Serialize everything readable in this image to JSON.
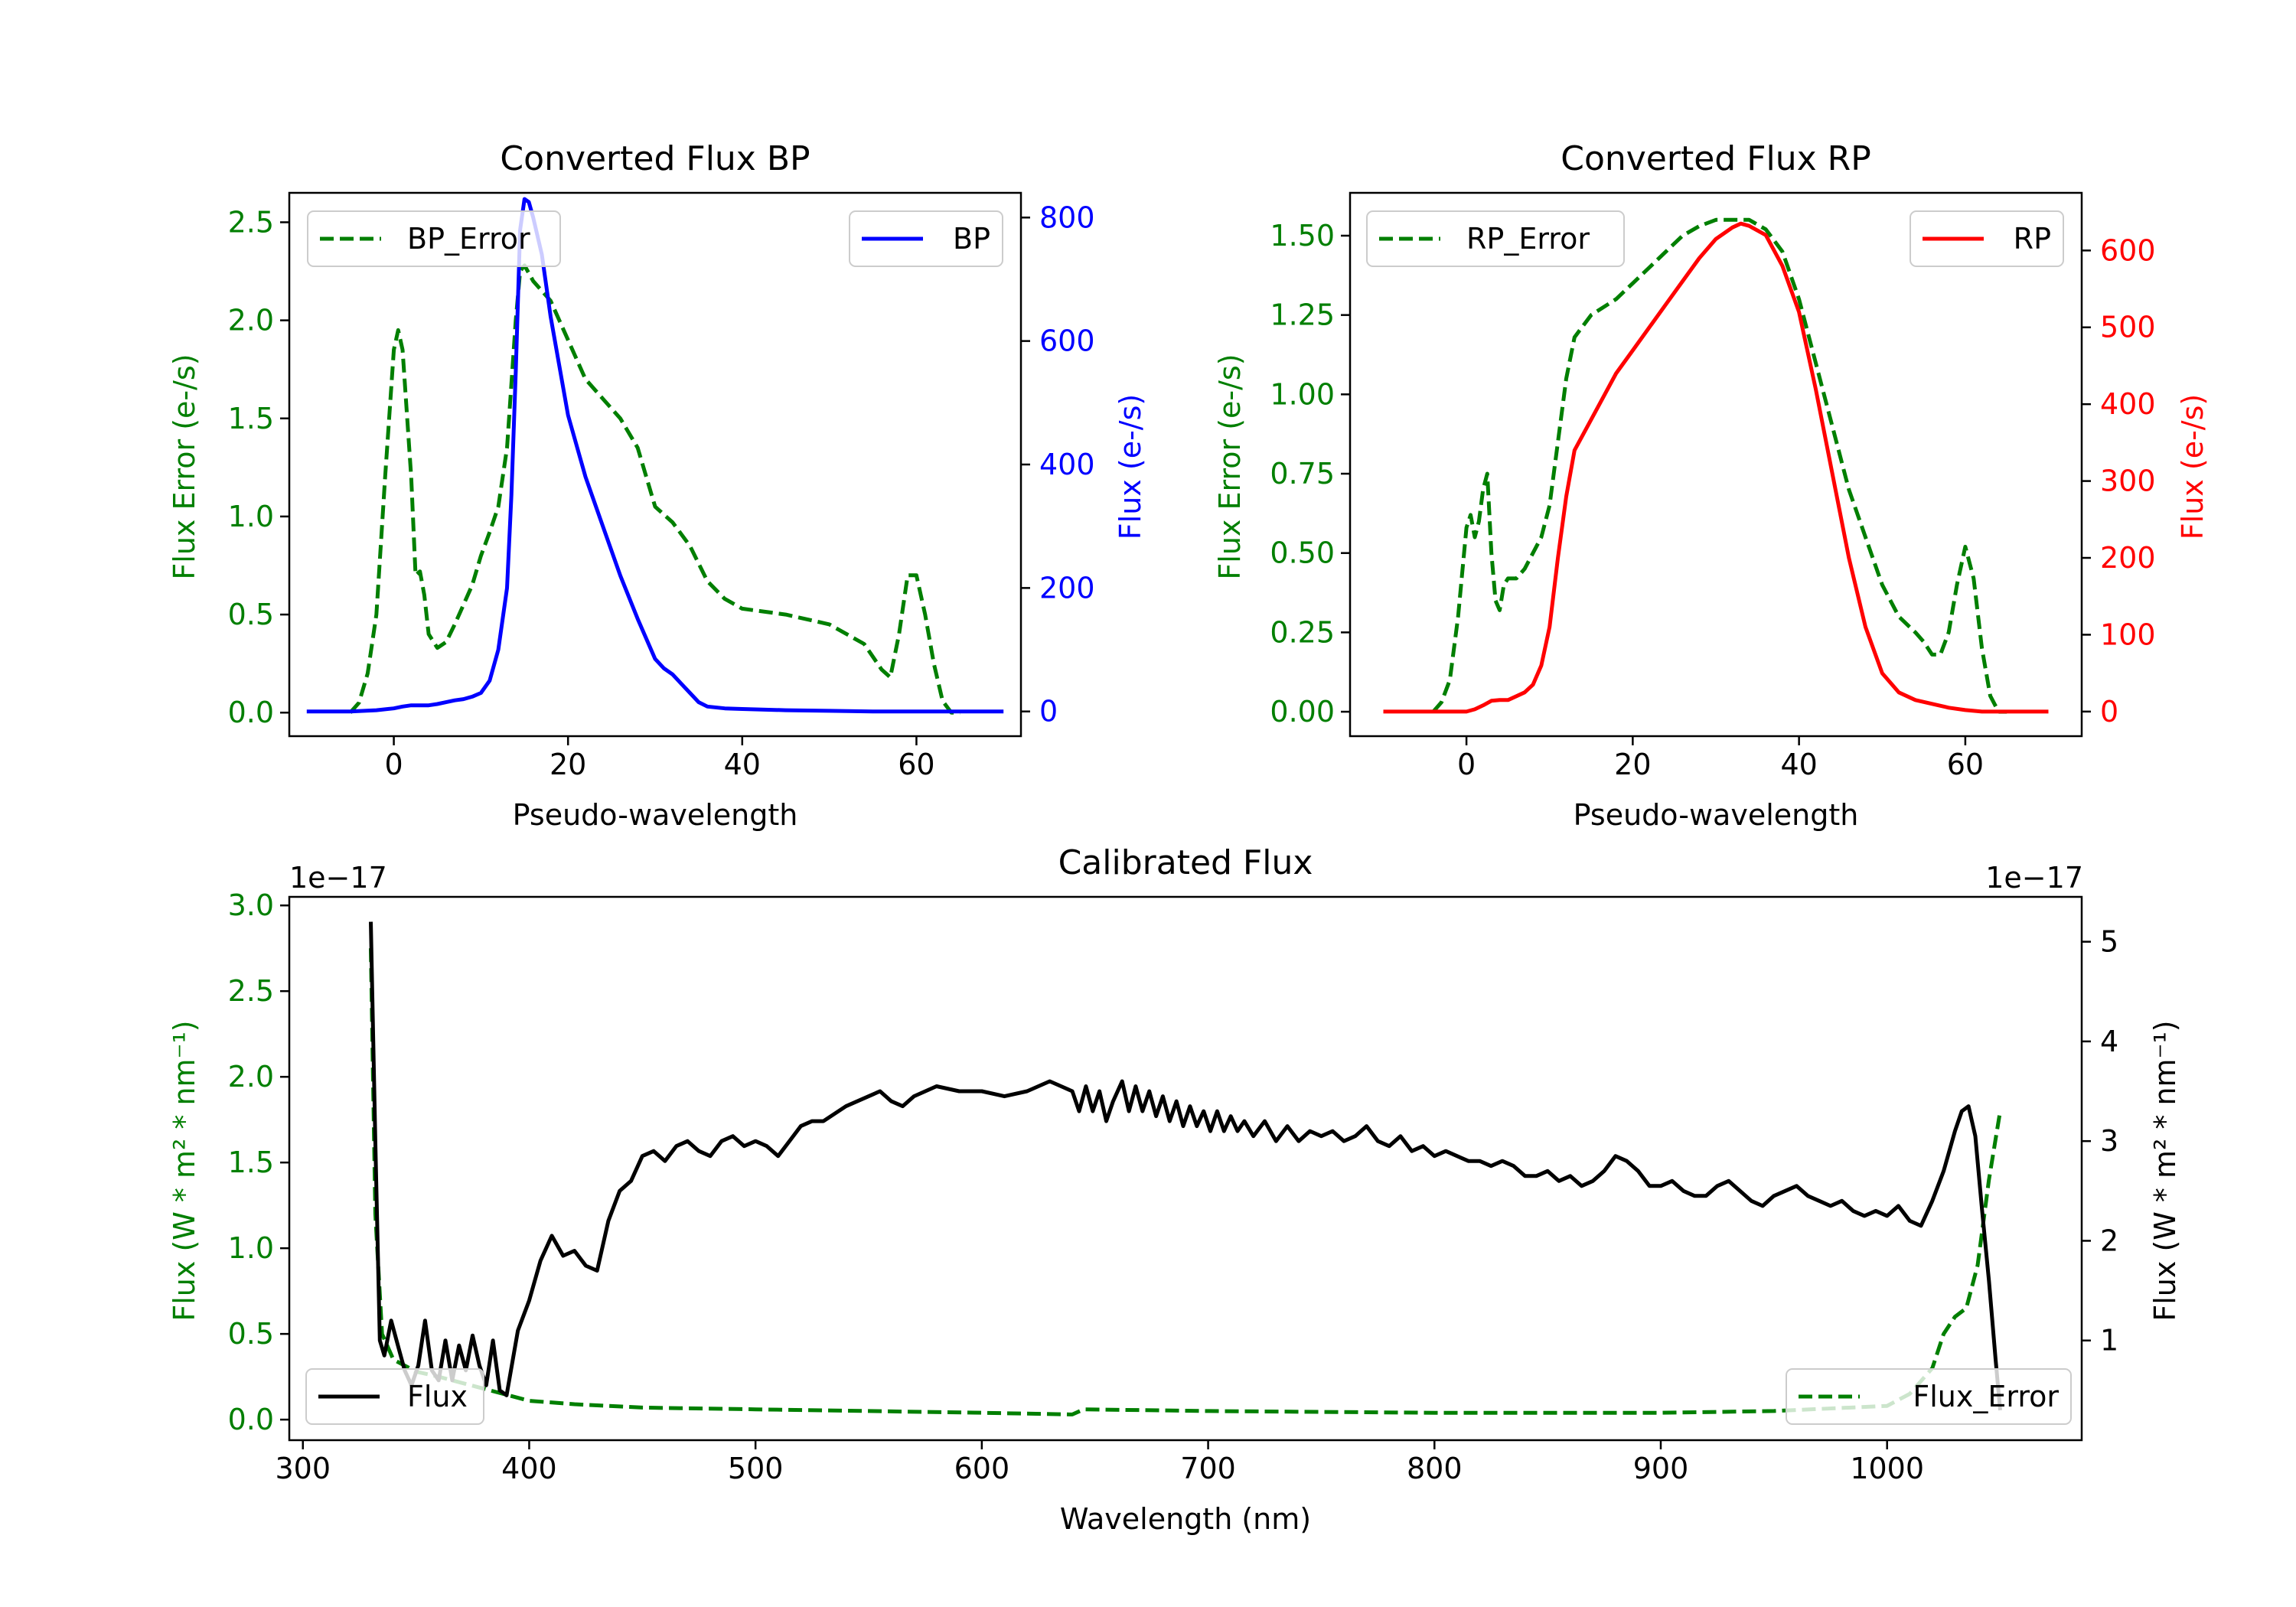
{
  "colors": {
    "error": "#007f00",
    "bp": "#0000ff",
    "rp": "#ff0000",
    "flux": "#000000",
    "axis": "#000000"
  },
  "chart_data": [
    {
      "id": "bp",
      "type": "line",
      "title": "Converted Flux BP",
      "xlabel": "Pseudo-wavelength",
      "ylabel_left": "Flux Error (e-/s)",
      "ylabel_right": "Flux (e-/s)",
      "xlim": [
        -12,
        72
      ],
      "ylim_left": [
        -0.12,
        2.65
      ],
      "ylim_right": [
        -40,
        840
      ],
      "xticks": [
        0,
        20,
        40,
        60
      ],
      "yticks_left": [
        0.0,
        0.5,
        1.0,
        1.5,
        2.0,
        2.5
      ],
      "yticks_left_labels": [
        "0.0",
        "0.5",
        "1.0",
        "1.5",
        "2.0",
        "2.5"
      ],
      "yticks_right": [
        0,
        200,
        400,
        600,
        800
      ],
      "yticks_right_labels": [
        "0",
        "200",
        "400",
        "600",
        "800"
      ],
      "legend_left": {
        "label": "BP_Error",
        "location": "upper left"
      },
      "legend_right": {
        "label": "BP",
        "location": "upper right"
      },
      "series": [
        {
          "name": "BP_Error",
          "axis": "left",
          "style": "dashed",
          "color_key": "error",
          "x": [
            -5,
            -4,
            -3,
            -2,
            -1,
            0,
            0.5,
            1,
            2,
            2.5,
            3,
            3.5,
            4,
            5,
            6,
            7,
            8,
            9,
            10,
            11,
            12,
            13,
            14,
            14.5,
            15,
            16,
            18,
            20,
            22,
            24,
            26,
            28,
            30,
            32,
            34,
            36,
            38,
            40,
            45,
            50,
            54,
            56,
            57,
            58,
            59,
            60,
            61,
            62,
            63,
            64,
            65
          ],
          "values": [
            0.0,
            0.05,
            0.2,
            0.5,
            1.2,
            1.85,
            1.95,
            1.85,
            1.2,
            0.7,
            0.72,
            0.6,
            0.4,
            0.33,
            0.36,
            0.45,
            0.55,
            0.65,
            0.8,
            0.92,
            1.05,
            1.35,
            2.0,
            2.25,
            2.28,
            2.2,
            2.1,
            1.9,
            1.7,
            1.6,
            1.5,
            1.35,
            1.05,
            0.97,
            0.85,
            0.67,
            0.58,
            0.53,
            0.5,
            0.45,
            0.35,
            0.22,
            0.18,
            0.4,
            0.7,
            0.7,
            0.5,
            0.25,
            0.06,
            0.0,
            0.0
          ]
        },
        {
          "name": "BP",
          "axis": "right",
          "style": "solid",
          "color_key": "bp",
          "x": [
            -10,
            -5,
            -2,
            0,
            1,
            2,
            4,
            5,
            6,
            7,
            8,
            9,
            10,
            11,
            12,
            13,
            13.5,
            14,
            14.5,
            15,
            15.5,
            16,
            17,
            18,
            19,
            20,
            22,
            24,
            26,
            28,
            30,
            31,
            32,
            33,
            34,
            35,
            36,
            38,
            40,
            45,
            50,
            55,
            60,
            65,
            70
          ],
          "values": [
            0,
            0,
            2,
            5,
            8,
            10,
            10,
            12,
            15,
            18,
            20,
            24,
            30,
            50,
            100,
            200,
            350,
            550,
            780,
            830,
            825,
            800,
            740,
            640,
            560,
            480,
            380,
            300,
            220,
            150,
            85,
            70,
            60,
            45,
            30,
            15,
            8,
            5,
            4,
            2,
            1,
            0,
            0,
            0,
            0
          ]
        }
      ]
    },
    {
      "id": "rp",
      "type": "line",
      "title": "Converted Flux RP",
      "xlabel": "Pseudo-wavelength",
      "ylabel_left": "Flux Error (e-/s)",
      "ylabel_right": "Flux (e-/s)",
      "xlim": [
        -14,
        74
      ],
      "ylim_left": [
        -0.077,
        1.635
      ],
      "ylim_right": [
        -32,
        675
      ],
      "xticks": [
        0,
        20,
        40,
        60
      ],
      "yticks_left": [
        0.0,
        0.25,
        0.5,
        0.75,
        1.0,
        1.25,
        1.5
      ],
      "yticks_left_labels": [
        "0.00",
        "0.25",
        "0.50",
        "0.75",
        "1.00",
        "1.25",
        "1.50"
      ],
      "yticks_right": [
        0,
        100,
        200,
        300,
        400,
        500,
        600
      ],
      "yticks_right_labels": [
        "0",
        "100",
        "200",
        "300",
        "400",
        "500",
        "600"
      ],
      "legend_left": {
        "label": "RP_Error",
        "location": "upper left"
      },
      "legend_right": {
        "label": "RP",
        "location": "upper right"
      },
      "series": [
        {
          "name": "RP_Error",
          "axis": "left",
          "style": "dashed",
          "color_key": "error",
          "x": [
            -4,
            -3,
            -2,
            -1,
            0,
            0.5,
            1,
            1.5,
            2,
            2.5,
            3,
            3.5,
            4,
            4.5,
            5,
            6,
            7,
            8,
            9,
            10,
            11,
            12,
            13,
            15,
            18,
            20,
            22,
            24,
            26,
            28,
            30,
            32,
            34,
            36,
            38,
            40,
            42,
            44,
            46,
            48,
            50,
            52,
            54,
            55,
            56,
            57,
            58,
            59,
            60,
            61,
            62,
            63,
            64,
            65
          ],
          "values": [
            0.0,
            0.03,
            0.1,
            0.3,
            0.58,
            0.62,
            0.55,
            0.6,
            0.7,
            0.75,
            0.5,
            0.35,
            0.32,
            0.4,
            0.42,
            0.42,
            0.45,
            0.5,
            0.55,
            0.65,
            0.85,
            1.05,
            1.18,
            1.25,
            1.3,
            1.35,
            1.4,
            1.45,
            1.5,
            1.53,
            1.55,
            1.55,
            1.55,
            1.52,
            1.45,
            1.3,
            1.1,
            0.9,
            0.7,
            0.55,
            0.4,
            0.3,
            0.25,
            0.22,
            0.18,
            0.18,
            0.25,
            0.4,
            0.52,
            0.42,
            0.2,
            0.05,
            0.0,
            0.0
          ]
        },
        {
          "name": "RP",
          "axis": "right",
          "style": "solid",
          "color_key": "rp",
          "x": [
            -10,
            -4,
            0,
            1,
            2,
            3,
            4,
            5,
            6,
            7,
            8,
            9,
            10,
            11,
            12,
            13,
            14,
            16,
            18,
            20,
            22,
            24,
            26,
            28,
            30,
            32,
            33,
            34,
            36,
            38,
            40,
            42,
            44,
            46,
            48,
            50,
            52,
            54,
            56,
            58,
            60,
            62,
            64,
            66,
            68,
            70
          ],
          "values": [
            0,
            0,
            0,
            3,
            8,
            14,
            15,
            15,
            20,
            25,
            35,
            60,
            110,
            200,
            280,
            340,
            360,
            400,
            440,
            470,
            500,
            530,
            560,
            590,
            615,
            630,
            635,
            632,
            620,
            580,
            520,
            420,
            310,
            200,
            110,
            50,
            25,
            15,
            10,
            5,
            2,
            0,
            0,
            0,
            0,
            0
          ]
        }
      ]
    },
    {
      "id": "calibrated",
      "type": "line",
      "title": "Calibrated Flux",
      "xlabel": "Wavelength (nm)",
      "ylabel_left": "Flux (W * m² * nm⁻¹)",
      "ylabel_right": "Flux (W * m² * nm⁻¹)",
      "left_multiplier": "1e−17",
      "right_multiplier": "1e−17",
      "xlim": [
        294,
        1086
      ],
      "ylim_left": [
        -0.12,
        3.05
      ],
      "ylim_right": [
        0.0,
        5.45
      ],
      "xticks": [
        300,
        400,
        500,
        600,
        700,
        800,
        900,
        1000
      ],
      "yticks_left": [
        0.0,
        0.5,
        1.0,
        1.5,
        2.0,
        2.5,
        3.0
      ],
      "yticks_left_labels": [
        "0.0",
        "0.5",
        "1.0",
        "1.5",
        "2.0",
        "2.5",
        "3.0"
      ],
      "yticks_right": [
        1,
        2,
        3,
        4,
        5
      ],
      "yticks_right_labels": [
        "1",
        "2",
        "3",
        "4",
        "5"
      ],
      "legend_left": {
        "label": "Flux",
        "location": "lower left"
      },
      "legend_right": {
        "label": "Flux_Error",
        "location": "lower right"
      },
      "series": [
        {
          "name": "Flux_Error",
          "axis": "left",
          "style": "dashed",
          "color_key": "error",
          "x": [
            330,
            332,
            335,
            340,
            350,
            360,
            380,
            400,
            420,
            450,
            500,
            550,
            600,
            640,
            645,
            700,
            800,
            900,
            950,
            1000,
            1010,
            1020,
            1025,
            1030,
            1035,
            1040,
            1045,
            1050
          ],
          "values": [
            2.75,
            1.2,
            0.5,
            0.35,
            0.28,
            0.25,
            0.18,
            0.11,
            0.09,
            0.07,
            0.06,
            0.05,
            0.04,
            0.03,
            0.06,
            0.05,
            0.04,
            0.04,
            0.05,
            0.08,
            0.15,
            0.3,
            0.5,
            0.6,
            0.65,
            0.9,
            1.4,
            1.8
          ]
        },
        {
          "name": "Flux",
          "axis": "right",
          "style": "solid",
          "color_key": "flux",
          "x": [
            330,
            332,
            334,
            336,
            339,
            342,
            345,
            348,
            351,
            354,
            357,
            360,
            363,
            366,
            369,
            372,
            375,
            378,
            381,
            384,
            387,
            390,
            395,
            400,
            405,
            410,
            415,
            420,
            425,
            430,
            435,
            440,
            445,
            450,
            455,
            460,
            465,
            470,
            475,
            480,
            485,
            490,
            495,
            500,
            505,
            510,
            515,
            520,
            525,
            530,
            540,
            550,
            555,
            560,
            565,
            570,
            580,
            590,
            600,
            610,
            620,
            630,
            635,
            640,
            643,
            646,
            649,
            652,
            655,
            658,
            662,
            665,
            668,
            671,
            674,
            677,
            680,
            683,
            686,
            689,
            692,
            695,
            698,
            701,
            704,
            707,
            710,
            713,
            716,
            720,
            725,
            730,
            735,
            740,
            745,
            750,
            755,
            760,
            765,
            770,
            775,
            780,
            785,
            790,
            795,
            800,
            805,
            810,
            815,
            820,
            825,
            830,
            835,
            840,
            845,
            850,
            855,
            860,
            865,
            870,
            875,
            880,
            885,
            890,
            895,
            900,
            905,
            910,
            915,
            920,
            925,
            930,
            935,
            940,
            945,
            950,
            955,
            960,
            965,
            970,
            975,
            980,
            985,
            990,
            995,
            1000,
            1005,
            1010,
            1015,
            1020,
            1025,
            1030,
            1033,
            1036,
            1039,
            1042,
            1045,
            1048,
            1050
          ],
          "values": [
            5.2,
            3.0,
            1.0,
            0.85,
            1.2,
            0.95,
            0.7,
            0.55,
            0.75,
            1.2,
            0.7,
            0.6,
            1.0,
            0.6,
            0.95,
            0.7,
            1.05,
            0.75,
            0.55,
            1.0,
            0.5,
            0.45,
            1.1,
            1.4,
            1.8,
            2.05,
            1.85,
            1.9,
            1.75,
            1.7,
            2.2,
            2.5,
            2.6,
            2.85,
            2.9,
            2.8,
            2.95,
            3.0,
            2.9,
            2.85,
            3.0,
            3.05,
            2.95,
            3.0,
            2.95,
            2.85,
            3.0,
            3.15,
            3.2,
            3.2,
            3.35,
            3.45,
            3.5,
            3.4,
            3.35,
            3.45,
            3.55,
            3.5,
            3.5,
            3.45,
            3.5,
            3.6,
            3.55,
            3.5,
            3.3,
            3.55,
            3.3,
            3.5,
            3.2,
            3.4,
            3.6,
            3.3,
            3.55,
            3.3,
            3.5,
            3.25,
            3.45,
            3.2,
            3.4,
            3.15,
            3.35,
            3.15,
            3.3,
            3.1,
            3.3,
            3.1,
            3.25,
            3.1,
            3.2,
            3.05,
            3.2,
            3.0,
            3.15,
            3.0,
            3.1,
            3.05,
            3.1,
            3.0,
            3.05,
            3.15,
            3.0,
            2.95,
            3.05,
            2.9,
            2.95,
            2.85,
            2.9,
            2.85,
            2.8,
            2.8,
            2.75,
            2.8,
            2.75,
            2.65,
            2.65,
            2.7,
            2.6,
            2.65,
            2.55,
            2.6,
            2.7,
            2.85,
            2.8,
            2.7,
            2.55,
            2.55,
            2.6,
            2.5,
            2.45,
            2.45,
            2.55,
            2.6,
            2.5,
            2.4,
            2.35,
            2.45,
            2.5,
            2.55,
            2.45,
            2.4,
            2.35,
            2.4,
            2.3,
            2.25,
            2.3,
            2.25,
            2.35,
            2.2,
            2.15,
            2.4,
            2.7,
            3.1,
            3.3,
            3.35,
            3.05,
            2.3,
            1.6,
            0.8,
            0.3
          ]
        }
      ]
    }
  ]
}
